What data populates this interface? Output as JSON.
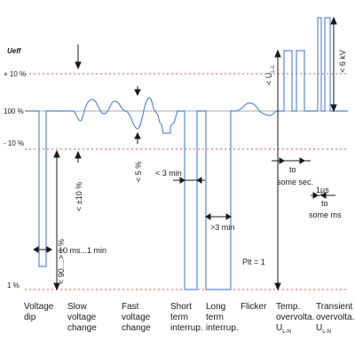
{
  "y_axis": {
    "title": "Ueff",
    "levels": [
      "+ 10 %",
      "100 %",
      "- 10 %",
      "1 %"
    ]
  },
  "categories": [
    {
      "line1": "Voltage",
      "line2": "dip",
      "line3": ""
    },
    {
      "line1": "Slow",
      "line2": "voltage",
      "line3": "change"
    },
    {
      "line1": "Fast",
      "line2": "voltage",
      "line3": "change"
    },
    {
      "line1": "Short",
      "line2": "term",
      "line3": "interrup."
    },
    {
      "line1": "Long",
      "line2": "term",
      "line3": "interrup."
    },
    {
      "line1": "Flicker",
      "line2": "",
      "line3": ""
    },
    {
      "line1": "Temp.",
      "line2": "overvolta.",
      "line3": "U",
      "line3_sub": "L-N"
    },
    {
      "line1": "Transient",
      "line2": "overvolta.",
      "line3": "U",
      "line3_sub": "L-N"
    }
  ],
  "annotations": {
    "dip_range": "< 90....> 1 %",
    "dip_duration": "10 ms...1 min",
    "slow_change": "< ±10 %",
    "fast_change": "< 5 %",
    "short_interruption": "< 3 min",
    "long_interruption": ">3 min",
    "flicker": "Plt = 1",
    "temp_duration_line1": "to",
    "temp_duration_line2": "some sec.",
    "transient_duration_line1": "1µs",
    "transient_duration_line2": "to",
    "transient_duration_line3": "some ms",
    "temp_amplitude_main": "< U",
    "temp_amplitude_sub": "L-L",
    "transient_amplitude": "< 6 kV"
  },
  "colors": {
    "signal": "#5b8bd6",
    "reference_dashed": "#e05050",
    "reference_solid": "#bcbcbc",
    "ink": "#1a1a1a"
  }
}
